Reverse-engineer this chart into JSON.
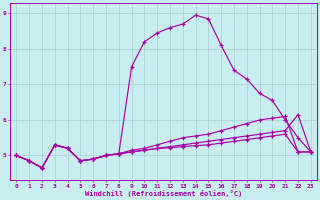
{
  "xlabel": "Windchill (Refroidissement éolien,°C)",
  "background_color": "#c8eef0",
  "grid_color": "#b0d4d8",
  "line_color": "#aa00aa",
  "yticks": [
    5,
    6,
    7,
    8,
    9
  ],
  "xticks": [
    0,
    1,
    2,
    3,
    4,
    5,
    6,
    7,
    8,
    9,
    10,
    11,
    12,
    13,
    14,
    15,
    16,
    17,
    18,
    19,
    20,
    21,
    22,
    23
  ],
  "xlim": [
    -0.5,
    23.5
  ],
  "ylim": [
    4.3,
    9.3
  ],
  "series": [
    [
      5.0,
      4.85,
      4.65,
      5.3,
      5.2,
      4.85,
      4.9,
      5.0,
      5.05,
      7.5,
      8.2,
      8.45,
      8.6,
      8.7,
      8.95,
      8.85,
      8.1,
      7.4,
      7.15,
      6.75,
      6.55,
      6.0,
      5.5,
      5.1
    ],
    [
      5.0,
      4.85,
      4.65,
      5.3,
      5.2,
      4.85,
      4.9,
      5.0,
      5.05,
      5.15,
      5.2,
      5.3,
      5.4,
      5.5,
      5.55,
      5.6,
      5.7,
      5.8,
      5.9,
      6.0,
      6.05,
      6.1,
      5.1,
      5.1
    ],
    [
      5.0,
      4.85,
      4.65,
      5.3,
      5.2,
      4.85,
      4.9,
      5.0,
      5.05,
      5.1,
      5.15,
      5.2,
      5.25,
      5.3,
      5.35,
      5.4,
      5.45,
      5.5,
      5.55,
      5.6,
      5.65,
      5.7,
      6.15,
      5.1
    ],
    [
      5.0,
      4.85,
      4.65,
      5.3,
      5.2,
      4.85,
      4.9,
      5.0,
      5.05,
      5.1,
      5.15,
      5.2,
      5.22,
      5.25,
      5.28,
      5.3,
      5.35,
      5.4,
      5.45,
      5.5,
      5.55,
      5.6,
      5.1,
      5.1
    ]
  ]
}
